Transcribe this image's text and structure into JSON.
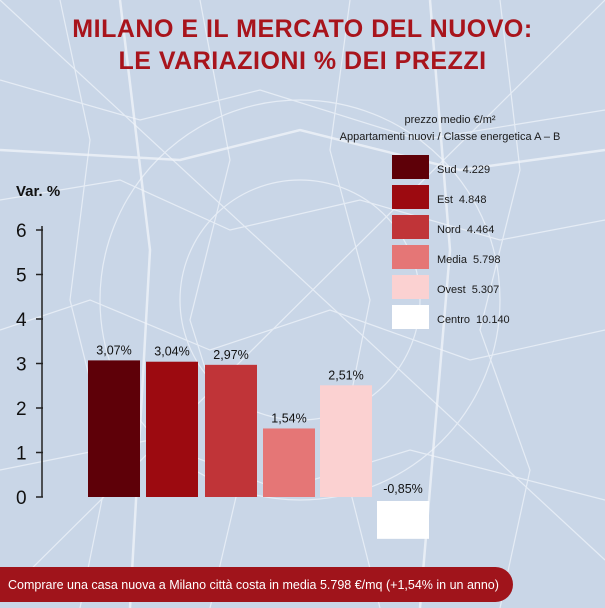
{
  "title_line1": "MILANO E IL MERCATO DEL NUOVO:",
  "title_line2": "LE VARIAZIONI % DEI PREZZI",
  "legend_header_line1": "prezzo medio €/m²",
  "legend_header_line2": "Appartamenti nuovi / Classe energetica A – B",
  "footer_text": "Comprare una casa nuova a Milano città costa in media 5.798 €/mq (+1,54% in un anno)",
  "chart_data": {
    "type": "bar",
    "ylabel": "Var. %",
    "ylim": [
      0,
      6
    ],
    "yticks": [
      "0",
      "1",
      "2",
      "3",
      "4",
      "5",
      "6"
    ],
    "categories": [
      "Sud",
      "Est",
      "Nord",
      "Media",
      "Ovest",
      "Centro"
    ],
    "values": [
      3.07,
      3.04,
      2.97,
      1.54,
      2.51,
      -0.85
    ],
    "value_labels": [
      "3,07%",
      "3,04%",
      "2,97%",
      "1,54%",
      "2,51%",
      "-0,85%"
    ],
    "colors": [
      "#5e0008",
      "#9c0a10",
      "#c03438",
      "#e57676",
      "#fbd1d1",
      "#ffffff"
    ],
    "legend": [
      {
        "name": "Sud",
        "value": "4.229",
        "color": "#5e0008"
      },
      {
        "name": "Est",
        "value": "4.848",
        "color": "#9c0a10"
      },
      {
        "name": "Nord",
        "value": "4.464",
        "color": "#c03438"
      },
      {
        "name": "Media",
        "value": "5.798",
        "color": "#e57676"
      },
      {
        "name": "Ovest",
        "value": "5.307",
        "color": "#fbd1d1"
      },
      {
        "name": "Centro",
        "value": "10.140",
        "color": "#ffffff"
      }
    ],
    "grid": false
  }
}
